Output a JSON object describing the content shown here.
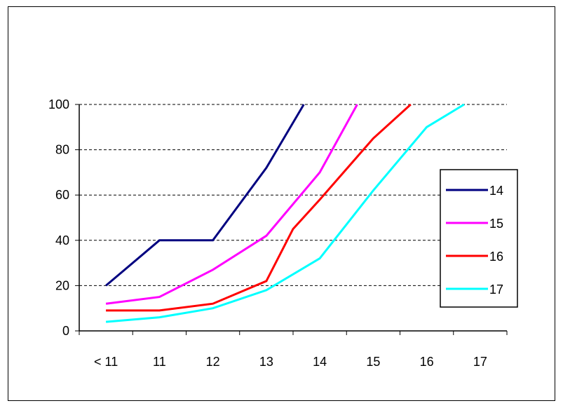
{
  "chart_data": {
    "type": "line",
    "title": "",
    "xlabel": "",
    "ylabel": "",
    "categories": [
      "< 11",
      "11",
      "12",
      "13",
      "14",
      "15",
      "16",
      "17"
    ],
    "ylim": [
      0,
      100
    ],
    "yticks": [
      0,
      20,
      40,
      60,
      80,
      100
    ],
    "grid": "horizontal dashed",
    "legend": "right",
    "series": [
      {
        "name": "14",
        "color": "#000080",
        "points": [
          [
            0.5,
            20
          ],
          [
            1.5,
            40
          ],
          [
            2.5,
            40
          ],
          [
            3.5,
            72
          ],
          [
            4.2,
            100
          ]
        ]
      },
      {
        "name": "15",
        "color": "#ff00ff",
        "points": [
          [
            0.5,
            12
          ],
          [
            1.5,
            15
          ],
          [
            2.5,
            27
          ],
          [
            3.5,
            42
          ],
          [
            4.5,
            70
          ],
          [
            5.2,
            100
          ]
        ]
      },
      {
        "name": "16",
        "color": "#ff0000",
        "points": [
          [
            0.5,
            9
          ],
          [
            1.5,
            9
          ],
          [
            2.5,
            12
          ],
          [
            3.5,
            22
          ],
          [
            4.0,
            45
          ],
          [
            4.5,
            58
          ],
          [
            5.5,
            85
          ],
          [
            6.2,
            100
          ]
        ]
      },
      {
        "name": "17",
        "color": "#00ffff",
        "points": [
          [
            0.5,
            4
          ],
          [
            1.5,
            6
          ],
          [
            2.5,
            10
          ],
          [
            3.5,
            18
          ],
          [
            4.5,
            32
          ],
          [
            5.5,
            62
          ],
          [
            6.5,
            90
          ],
          [
            7.2,
            100
          ]
        ]
      }
    ]
  }
}
